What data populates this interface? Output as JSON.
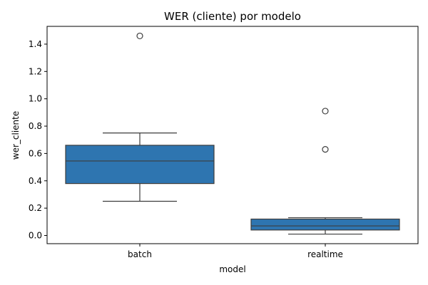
{
  "chart_data": {
    "type": "box",
    "title": "WER (cliente) por modelo",
    "xlabel": "model",
    "ylabel": "wer_cliente",
    "ylim": [
      -0.06,
      1.53
    ],
    "yticks": [
      0.0,
      0.2,
      0.4,
      0.6,
      0.8,
      1.0,
      1.2,
      1.4
    ],
    "ytick_labels": [
      "0.0",
      "0.2",
      "0.4",
      "0.6",
      "0.8",
      "1.0",
      "1.2",
      "1.4"
    ],
    "categories": [
      "batch",
      "realtime"
    ],
    "boxes": [
      {
        "category": "batch",
        "whisker_low": 0.25,
        "q1": 0.38,
        "median": 0.545,
        "q3": 0.66,
        "whisker_high": 0.75,
        "outliers": [
          1.46
        ]
      },
      {
        "category": "realtime",
        "whisker_low": 0.01,
        "q1": 0.04,
        "median": 0.07,
        "q3": 0.12,
        "whisker_high": 0.13,
        "outliers": [
          0.91,
          0.63
        ]
      }
    ],
    "color": "#2e75b0",
    "line_color": "#3d3d3d"
  }
}
